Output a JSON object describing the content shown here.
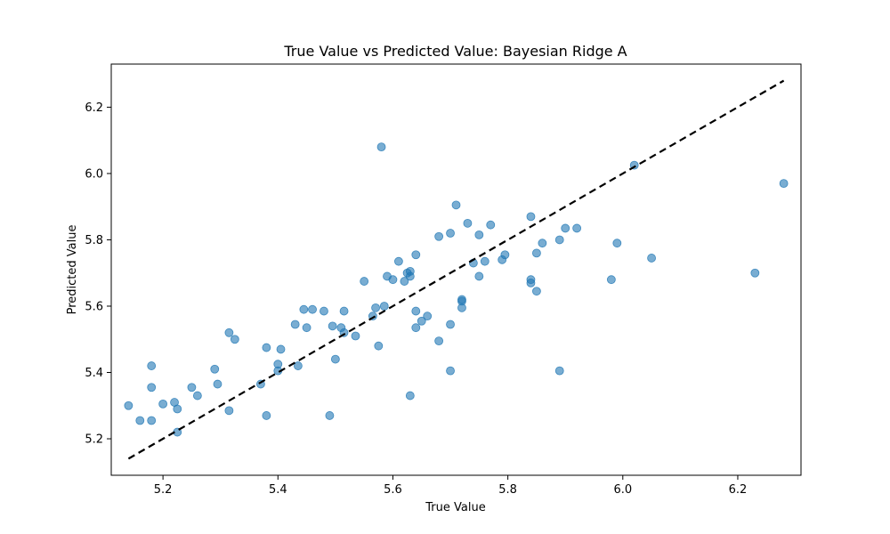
{
  "chart_data": {
    "type": "scatter",
    "title": "True Value vs Predicted Value: Bayesian Ridge A",
    "xlabel": "True Value",
    "ylabel": "Predicted Value",
    "xlim": [
      5.11,
      6.31
    ],
    "ylim": [
      5.09,
      6.33
    ],
    "xticks": [
      5.2,
      5.4,
      5.6,
      5.8,
      6.0,
      6.2
    ],
    "yticks": [
      5.2,
      5.4,
      5.6,
      5.8,
      6.0,
      6.2
    ],
    "xtick_labels": [
      "5.2",
      "5.4",
      "5.6",
      "5.8",
      "6.0",
      "6.2"
    ],
    "ytick_labels": [
      "5.2",
      "5.4",
      "5.6",
      "5.8",
      "6.0",
      "6.2"
    ],
    "grid": false,
    "point_color": "#1f77b4",
    "point_alpha": 0.6,
    "reference_line": {
      "style": "dashed",
      "color": "#000000",
      "from": [
        5.14,
        5.14
      ],
      "to": [
        6.28,
        6.28
      ]
    },
    "points": [
      {
        "x": 5.14,
        "y": 5.3
      },
      {
        "x": 5.16,
        "y": 5.255
      },
      {
        "x": 5.18,
        "y": 5.255
      },
      {
        "x": 5.18,
        "y": 5.42
      },
      {
        "x": 5.18,
        "y": 5.355
      },
      {
        "x": 5.2,
        "y": 5.305
      },
      {
        "x": 5.22,
        "y": 5.31
      },
      {
        "x": 5.225,
        "y": 5.29
      },
      {
        "x": 5.225,
        "y": 5.22
      },
      {
        "x": 5.25,
        "y": 5.355
      },
      {
        "x": 5.26,
        "y": 5.33
      },
      {
        "x": 5.29,
        "y": 5.41
      },
      {
        "x": 5.295,
        "y": 5.365
      },
      {
        "x": 5.315,
        "y": 5.285
      },
      {
        "x": 5.315,
        "y": 5.52
      },
      {
        "x": 5.325,
        "y": 5.5
      },
      {
        "x": 5.37,
        "y": 5.365
      },
      {
        "x": 5.38,
        "y": 5.27
      },
      {
        "x": 5.38,
        "y": 5.475
      },
      {
        "x": 5.4,
        "y": 5.425
      },
      {
        "x": 5.4,
        "y": 5.405
      },
      {
        "x": 5.405,
        "y": 5.47
      },
      {
        "x": 5.43,
        "y": 5.545
      },
      {
        "x": 5.435,
        "y": 5.42
      },
      {
        "x": 5.445,
        "y": 5.59
      },
      {
        "x": 5.45,
        "y": 5.535
      },
      {
        "x": 5.46,
        "y": 5.59
      },
      {
        "x": 5.48,
        "y": 5.585
      },
      {
        "x": 5.49,
        "y": 5.27
      },
      {
        "x": 5.495,
        "y": 5.54
      },
      {
        "x": 5.5,
        "y": 5.44
      },
      {
        "x": 5.51,
        "y": 5.535
      },
      {
        "x": 5.515,
        "y": 5.52
      },
      {
        "x": 5.515,
        "y": 5.585
      },
      {
        "x": 5.535,
        "y": 5.51
      },
      {
        "x": 5.55,
        "y": 5.675
      },
      {
        "x": 5.565,
        "y": 5.57
      },
      {
        "x": 5.57,
        "y": 5.595
      },
      {
        "x": 5.575,
        "y": 5.48
      },
      {
        "x": 5.58,
        "y": 6.08
      },
      {
        "x": 5.585,
        "y": 5.6
      },
      {
        "x": 5.59,
        "y": 5.69
      },
      {
        "x": 5.6,
        "y": 5.68
      },
      {
        "x": 5.61,
        "y": 5.735
      },
      {
        "x": 5.62,
        "y": 5.675
      },
      {
        "x": 5.625,
        "y": 5.7
      },
      {
        "x": 5.63,
        "y": 5.705
      },
      {
        "x": 5.63,
        "y": 5.69
      },
      {
        "x": 5.63,
        "y": 5.33
      },
      {
        "x": 5.64,
        "y": 5.755
      },
      {
        "x": 5.64,
        "y": 5.585
      },
      {
        "x": 5.64,
        "y": 5.535
      },
      {
        "x": 5.65,
        "y": 5.555
      },
      {
        "x": 5.66,
        "y": 5.57
      },
      {
        "x": 5.68,
        "y": 5.81
      },
      {
        "x": 5.68,
        "y": 5.495
      },
      {
        "x": 5.7,
        "y": 5.82
      },
      {
        "x": 5.7,
        "y": 5.545
      },
      {
        "x": 5.7,
        "y": 5.405
      },
      {
        "x": 5.71,
        "y": 5.905
      },
      {
        "x": 5.72,
        "y": 5.62
      },
      {
        "x": 5.72,
        "y": 5.615
      },
      {
        "x": 5.72,
        "y": 5.595
      },
      {
        "x": 5.73,
        "y": 5.85
      },
      {
        "x": 5.74,
        "y": 5.73
      },
      {
        "x": 5.75,
        "y": 5.815
      },
      {
        "x": 5.75,
        "y": 5.69
      },
      {
        "x": 5.76,
        "y": 5.735
      },
      {
        "x": 5.77,
        "y": 5.845
      },
      {
        "x": 5.79,
        "y": 5.74
      },
      {
        "x": 5.795,
        "y": 5.755
      },
      {
        "x": 5.84,
        "y": 5.87
      },
      {
        "x": 5.84,
        "y": 5.68
      },
      {
        "x": 5.84,
        "y": 5.67
      },
      {
        "x": 5.85,
        "y": 5.76
      },
      {
        "x": 5.85,
        "y": 5.645
      },
      {
        "x": 5.86,
        "y": 5.79
      },
      {
        "x": 5.89,
        "y": 5.8
      },
      {
        "x": 5.89,
        "y": 5.405
      },
      {
        "x": 5.9,
        "y": 5.835
      },
      {
        "x": 5.92,
        "y": 5.835
      },
      {
        "x": 5.98,
        "y": 5.68
      },
      {
        "x": 5.99,
        "y": 5.79
      },
      {
        "x": 6.02,
        "y": 6.025
      },
      {
        "x": 6.05,
        "y": 5.745
      },
      {
        "x": 6.23,
        "y": 5.7
      },
      {
        "x": 6.28,
        "y": 5.97
      }
    ]
  }
}
